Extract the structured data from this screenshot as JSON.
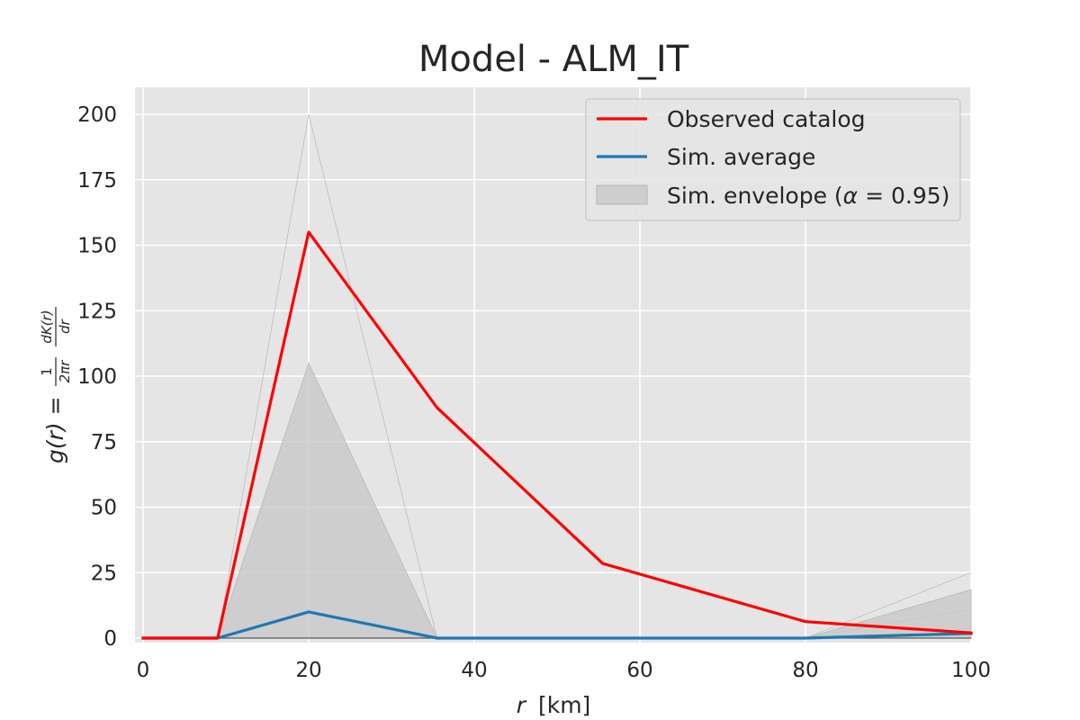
{
  "chart_data": {
    "type": "line",
    "title": "Model - ALM_IT",
    "xlabel_var": "r",
    "xlabel_unit": "[km]",
    "ylabel": "g(r) = 1/(2πr) · dK(r)/dr",
    "ylabel_parts": {
      "lhs": "g(r) = ",
      "frac1_num": "1",
      "frac1_den": "2πr",
      "frac2_num": "dK(r)",
      "frac2_den": "dr"
    },
    "xlim": [
      0,
      100
    ],
    "ylim": [
      0,
      210
    ],
    "xticks": [
      0,
      20,
      40,
      60,
      80,
      100
    ],
    "yticks": [
      0,
      25,
      50,
      75,
      100,
      125,
      150,
      175,
      200
    ],
    "grid": true,
    "legend_position": "top-right",
    "x": [
      0,
      9,
      20,
      35.5,
      55.5,
      80,
      100
    ],
    "series": [
      {
        "name": "Observed catalog",
        "color": "#ff0000",
        "values": [
          0,
          0,
          155,
          88,
          28.5,
          6.3,
          2
        ]
      },
      {
        "name": "Sim. average",
        "color": "#1f77b4",
        "values": [
          0,
          0,
          10,
          0,
          0,
          0,
          1.8
        ]
      }
    ],
    "envelope": {
      "name": "Sim. envelope (α = 0.95)",
      "label_prefix": "Sim. envelope (",
      "label_alpha": "α",
      "label_suffix": " = 0.95)",
      "color": "#c8c8c8",
      "lower": [
        0,
        0,
        0,
        0,
        0,
        0,
        0
      ],
      "upper": [
        0,
        0,
        105,
        0,
        0,
        0,
        18.5
      ]
    },
    "extreme_sim_upper": [
      0,
      0,
      200,
      0,
      0,
      0,
      25
    ]
  }
}
